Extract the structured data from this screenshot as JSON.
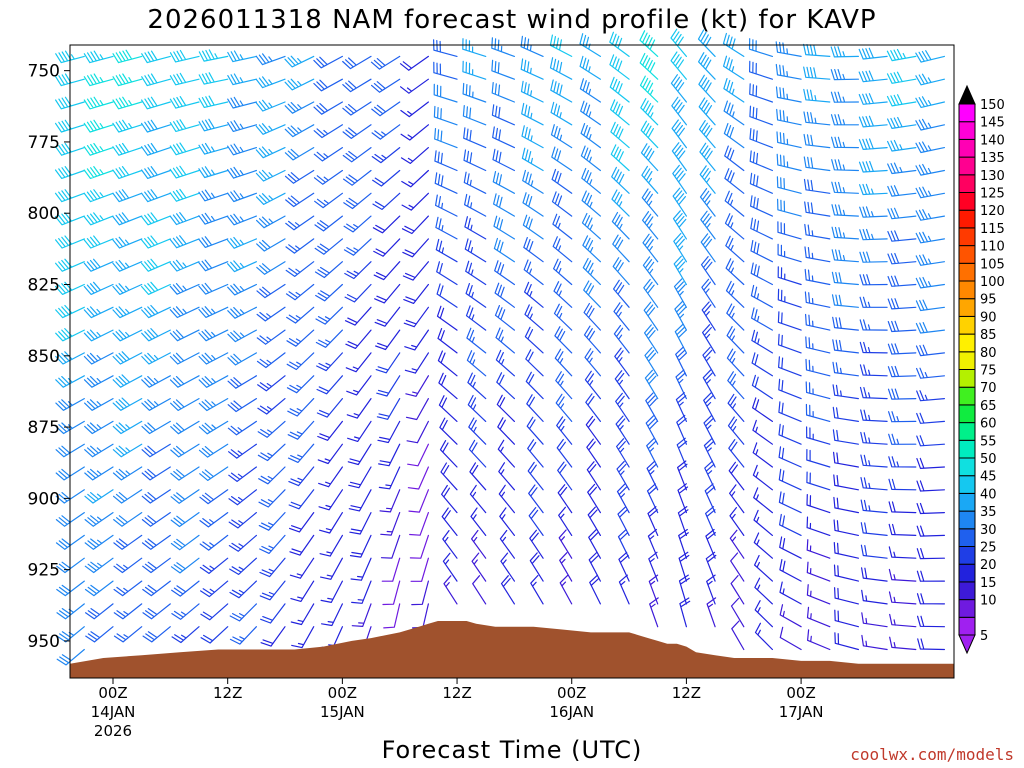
{
  "chart_data": {
    "type": "wind_barb_time_height",
    "title": "2026011318 NAM forecast wind profile (kt) for KAVP",
    "xlabel": "Forecast Time (UTC)",
    "credit": "coolwx.com/models",
    "x_range_hours": [
      -4.5,
      88
    ],
    "y_range_hpa": [
      741,
      963
    ],
    "y_ticks": [
      {
        "value": 750,
        "label": "750"
      },
      {
        "value": 775,
        "label": "775"
      },
      {
        "value": 800,
        "label": "800"
      },
      {
        "value": 825,
        "label": "825"
      },
      {
        "value": 850,
        "label": "850"
      },
      {
        "value": 875,
        "label": "875"
      },
      {
        "value": 900,
        "label": "900"
      },
      {
        "value": 925,
        "label": "925"
      },
      {
        "value": 950,
        "label": "950"
      }
    ],
    "x_ticks": [
      {
        "hour": 0,
        "lines": [
          "00Z",
          "14JAN",
          "2026"
        ]
      },
      {
        "hour": 12,
        "lines": [
          "12Z"
        ]
      },
      {
        "hour": 24,
        "lines": [
          "00Z",
          "15JAN"
        ]
      },
      {
        "hour": 36,
        "lines": [
          "12Z"
        ]
      },
      {
        "hour": 48,
        "lines": [
          "00Z",
          "16JAN"
        ]
      },
      {
        "hour": 60,
        "lines": [
          "12Z"
        ]
      },
      {
        "hour": 72,
        "lines": [
          "00Z",
          "17JAN"
        ]
      }
    ],
    "surface_pressure": {
      "hours": [
        -4.5,
        -1,
        3,
        7,
        11,
        15,
        19,
        22,
        25,
        27,
        30,
        32,
        33,
        34,
        35,
        36,
        37,
        38,
        40,
        42,
        44,
        47,
        50,
        52,
        54,
        55,
        56,
        57,
        58,
        59,
        60,
        61,
        63,
        65,
        67,
        69,
        72,
        75,
        78,
        82,
        88
      ],
      "hpa": [
        958,
        956,
        955,
        954,
        953,
        953,
        953,
        952,
        950,
        949,
        947,
        945,
        944,
        943,
        943,
        943,
        943,
        944,
        945,
        945,
        945,
        946,
        947,
        947,
        947,
        948,
        949,
        950,
        951,
        951,
        952,
        954,
        955,
        956,
        956,
        956,
        957,
        957,
        958,
        958,
        958
      ]
    },
    "speed_anchors": {
      "hours": [
        -4,
        0,
        6,
        12,
        18,
        22,
        26,
        30,
        32,
        33,
        34,
        36,
        40,
        45,
        50,
        54,
        56,
        60,
        64,
        68,
        72,
        78,
        84,
        88
      ],
      "speed_at_750": [
        44,
        46,
        44,
        40,
        36,
        33,
        30,
        27,
        24,
        20,
        22,
        30,
        34,
        36,
        38,
        42,
        46,
        44,
        38,
        32,
        34,
        38,
        40,
        40
      ],
      "speed_at_950": [
        30,
        28,
        26,
        24,
        20,
        16,
        12,
        10,
        9,
        8,
        9,
        12,
        14,
        14,
        14,
        14,
        15,
        15,
        13,
        13,
        14,
        15,
        15,
        15
      ]
    },
    "direction_anchors": {
      "hours": [
        -4,
        6,
        14,
        20,
        26,
        30,
        33,
        34,
        36,
        42,
        50,
        56,
        60,
        64,
        68,
        72,
        80,
        88
      ],
      "dir_deg_at_750": [
        255,
        255,
        260,
        245,
        240,
        238,
        235,
        280,
        285,
        290,
        300,
        310,
        320,
        315,
        290,
        280,
        265,
        255
      ],
      "dir_deg_at_950": [
        230,
        230,
        225,
        210,
        200,
        190,
        190,
        320,
        330,
        330,
        335,
        340,
        345,
        340,
        320,
        300,
        280,
        270
      ]
    },
    "colorbar": {
      "levels": [
        5,
        10,
        15,
        20,
        25,
        30,
        35,
        40,
        45,
        50,
        55,
        60,
        65,
        70,
        75,
        80,
        85,
        90,
        95,
        100,
        105,
        110,
        115,
        120,
        125,
        130,
        135,
        140,
        145,
        150
      ],
      "colors": [
        "#a020f0",
        "#6f1ae0",
        "#3d1ad8",
        "#2222dd",
        "#1f3ee6",
        "#1f60ee",
        "#1e86f2",
        "#1aa8f5",
        "#15c8f0",
        "#10e0e0",
        "#00ecc0",
        "#00f08a",
        "#10ec40",
        "#40f020",
        "#b4f000",
        "#f0f000",
        "#fff000",
        "#ffd200",
        "#ffa600",
        "#ff8800",
        "#ff7000",
        "#ff5400",
        "#ff3a00",
        "#ff1a00",
        "#ff0024",
        "#ff0060",
        "#ff0090",
        "#ff00b4",
        "#ff00d8",
        "#ff00ff"
      ],
      "tri_top_color": "#000000",
      "tri_bottom_color": "#a020f0"
    },
    "colors": {
      "terrain": "#a0522d"
    }
  }
}
